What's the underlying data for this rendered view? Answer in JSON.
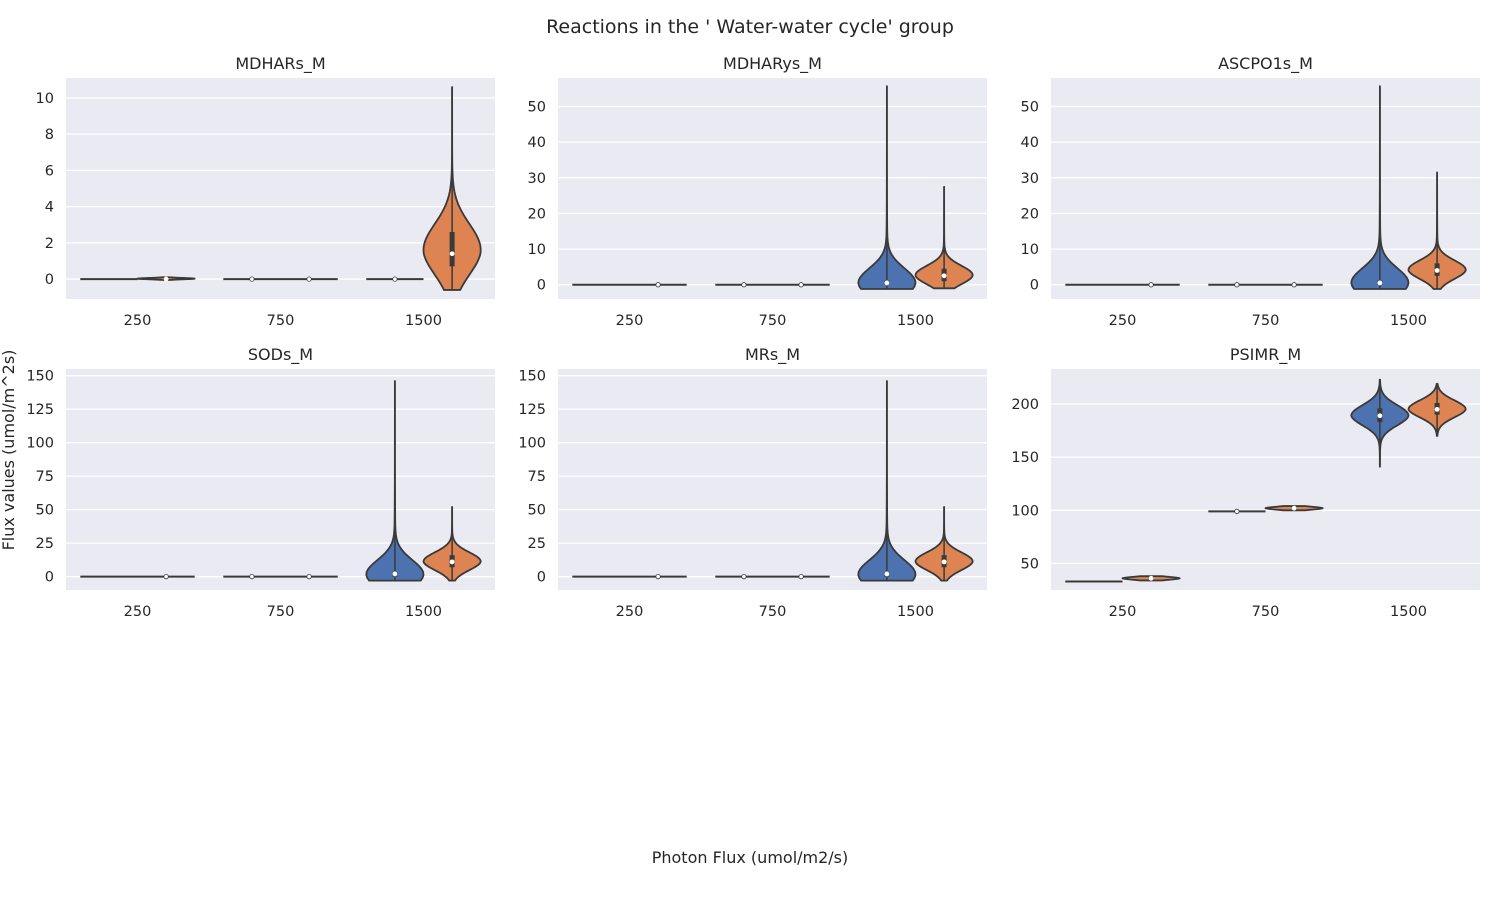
{
  "figure": {
    "title": "Reactions in the ' Water-water cycle' group",
    "xlabel": "Photon Flux (umol/m2/s)",
    "ylabel": "Flux values (umol/m^2s)"
  },
  "colors": {
    "background": "#eaeaf2",
    "grid": "#ffffff",
    "series_a": "#4c72b0",
    "series_b": "#dd8452",
    "outline": "#3a3a3a"
  },
  "chart_data": [
    {
      "type": "violin",
      "title": "MDHARs_M",
      "categories": [
        "250",
        "750",
        "1500"
      ],
      "ylim": [
        -1.1,
        11.1
      ],
      "yticks": [
        0,
        2,
        4,
        6,
        8,
        10
      ],
      "grid": true,
      "series": [
        {
          "color": "#4c72b0",
          "violins": [
            {
              "min": 0,
              "q1": 0,
              "median": 0,
              "q3": 0,
              "max": 0
            },
            {
              "min": 0,
              "q1": 0,
              "median": 0,
              "q3": 0,
              "max": 0
            },
            {
              "min": 0,
              "q1": 0,
              "median": 0,
              "q3": 0,
              "max": 0
            }
          ]
        },
        {
          "color": "#dd8452",
          "violins": [
            {
              "min": -0.05,
              "q1": 0,
              "median": 0,
              "q3": 0.05,
              "max": 0.1
            },
            {
              "min": 0,
              "q1": 0,
              "median": 0,
              "q3": 0,
              "max": 0
            },
            {
              "min": -0.6,
              "q1": 0.7,
              "median": 1.4,
              "q3": 2.6,
              "max": 10.6
            }
          ]
        }
      ]
    },
    {
      "type": "violin",
      "title": "MDHARys_M",
      "categories": [
        "250",
        "750",
        "1500"
      ],
      "ylim": [
        -4,
        58
      ],
      "yticks": [
        0,
        10,
        20,
        30,
        40,
        50
      ],
      "grid": true,
      "series": [
        {
          "color": "#4c72b0",
          "violins": [
            {
              "min": 0,
              "q1": 0,
              "median": 0,
              "q3": 0,
              "max": 0
            },
            {
              "min": 0,
              "q1": 0,
              "median": 0,
              "q3": 0,
              "max": 0
            },
            {
              "min": -1.2,
              "q1": 0,
              "median": 0.5,
              "q3": 1.2,
              "max": 55.7
            }
          ]
        },
        {
          "color": "#dd8452",
          "violins": [
            {
              "min": -0.3,
              "q1": 0,
              "median": 0,
              "q3": 0,
              "max": 0
            },
            {
              "min": -0.3,
              "q1": 0,
              "median": 0,
              "q3": 0,
              "max": 0
            },
            {
              "min": -1,
              "q1": 1,
              "median": 2.5,
              "q3": 4.5,
              "max": 27.5
            }
          ]
        }
      ]
    },
    {
      "type": "violin",
      "title": "ASCPO1s_M",
      "categories": [
        "250",
        "750",
        "1500"
      ],
      "ylim": [
        -4,
        58
      ],
      "yticks": [
        0,
        10,
        20,
        30,
        40,
        50
      ],
      "grid": true,
      "series": [
        {
          "color": "#4c72b0",
          "violins": [
            {
              "min": 0,
              "q1": 0,
              "median": 0,
              "q3": 0,
              "max": 0
            },
            {
              "min": 0,
              "q1": 0,
              "median": 0,
              "q3": 0,
              "max": 0
            },
            {
              "min": -1.2,
              "q1": 0,
              "median": 0.5,
              "q3": 1.2,
              "max": 55.7
            }
          ]
        },
        {
          "color": "#dd8452",
          "violins": [
            {
              "min": -0.3,
              "q1": 0,
              "median": 0,
              "q3": 0,
              "max": 0
            },
            {
              "min": -0.3,
              "q1": 0,
              "median": 0,
              "q3": 0,
              "max": 0
            },
            {
              "min": -1.2,
              "q1": 2.5,
              "median": 4,
              "q3": 6,
              "max": 31.5
            }
          ]
        }
      ]
    },
    {
      "type": "violin",
      "title": "SODs_M",
      "categories": [
        "250",
        "750",
        "1500"
      ],
      "ylim": [
        -10,
        155
      ],
      "yticks": [
        0,
        25,
        50,
        75,
        100,
        125,
        150
      ],
      "grid": true,
      "series": [
        {
          "color": "#4c72b0",
          "violins": [
            {
              "min": 0,
              "q1": 0,
              "median": 0,
              "q3": 0,
              "max": 0
            },
            {
              "min": 0,
              "q1": 0,
              "median": 0,
              "q3": 0,
              "max": 0
            },
            {
              "min": -3,
              "q1": 0,
              "median": 2,
              "q3": 3.5,
              "max": 146
            }
          ]
        },
        {
          "color": "#dd8452",
          "violins": [
            {
              "min": -0.8,
              "q1": 0,
              "median": 0,
              "q3": 0,
              "max": 0
            },
            {
              "min": -0.8,
              "q1": 0,
              "median": 0,
              "q3": 0,
              "max": 0
            },
            {
              "min": -3,
              "q1": 7,
              "median": 11,
              "q3": 16,
              "max": 52
            }
          ]
        }
      ]
    },
    {
      "type": "violin",
      "title": "MRs_M",
      "categories": [
        "250",
        "750",
        "1500"
      ],
      "ylim": [
        -10,
        155
      ],
      "yticks": [
        0,
        25,
        50,
        75,
        100,
        125,
        150
      ],
      "grid": true,
      "series": [
        {
          "color": "#4c72b0",
          "violins": [
            {
              "min": 0,
              "q1": 0,
              "median": 0,
              "q3": 0,
              "max": 0
            },
            {
              "min": 0,
              "q1": 0,
              "median": 0,
              "q3": 0,
              "max": 0
            },
            {
              "min": -3,
              "q1": 0,
              "median": 2,
              "q3": 3.5,
              "max": 146
            }
          ]
        },
        {
          "color": "#dd8452",
          "violins": [
            {
              "min": -0.8,
              "q1": 0,
              "median": 0,
              "q3": 0,
              "max": 0
            },
            {
              "min": -0.8,
              "q1": 0,
              "median": 0,
              "q3": 0,
              "max": 0
            },
            {
              "min": -3,
              "q1": 7,
              "median": 11,
              "q3": 16,
              "max": 52
            }
          ]
        }
      ]
    },
    {
      "type": "violin",
      "title": "PSIMR_M",
      "categories": [
        "250",
        "750",
        "1500"
      ],
      "ylim": [
        25,
        233
      ],
      "yticks": [
        50,
        100,
        150,
        200
      ],
      "grid": true,
      "series": [
        {
          "color": "#4c72b0",
          "violins": [
            {
              "min": 32.5,
              "q1": 32.8,
              "median": 33,
              "q3": 33.2,
              "max": 33.5
            },
            {
              "min": 98.5,
              "q1": 98.8,
              "median": 99,
              "q3": 99.2,
              "max": 99.5
            },
            {
              "min": 141,
              "q1": 183,
              "median": 189,
              "q3": 196,
              "max": 223
            }
          ]
        },
        {
          "color": "#dd8452",
          "violins": [
            {
              "min": 34,
              "q1": 35,
              "median": 36,
              "q3": 37,
              "max": 38
            },
            {
              "min": 100,
              "q1": 101,
              "median": 102,
              "q3": 103,
              "max": 104
            },
            {
              "min": 170,
              "q1": 190,
              "median": 195,
              "q3": 201,
              "max": 219
            }
          ]
        }
      ]
    }
  ]
}
